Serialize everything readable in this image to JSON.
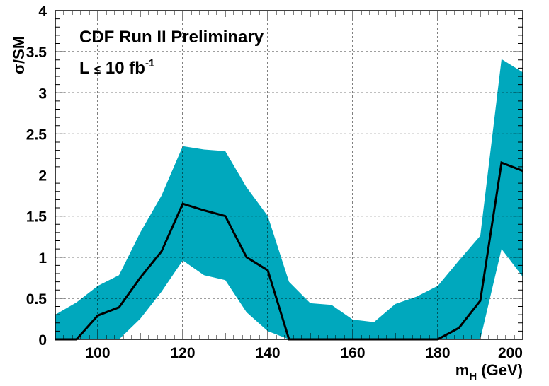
{
  "chart_data": {
    "type": "area",
    "xlabel": {
      "main": "m",
      "sub": "H",
      "unit": " (GeV)"
    },
    "ylabel": "σ/SM",
    "xlim": [
      90,
      200
    ],
    "ylim": [
      0,
      4
    ],
    "x_ticks": [
      100,
      120,
      140,
      160,
      180,
      200
    ],
    "x_tick_labels": [
      "100",
      "120",
      "140",
      "160",
      "180",
      "200"
    ],
    "y_ticks": [
      0,
      0.5,
      1,
      1.5,
      2,
      2.5,
      3,
      3.5,
      4
    ],
    "y_tick_labels": [
      "0",
      "0.5",
      "1",
      "1.5",
      "2",
      "2.5",
      "3",
      "3.5",
      "4"
    ],
    "grid": true,
    "annotations": {
      "line1": "CDF Run II Preliminary",
      "line2_prefix": "L ",
      "line2_le": "≤",
      "line2_value": " 10 fb",
      "line2_sup": "-1"
    },
    "band": {
      "color": "#00a8bd",
      "x": [
        90,
        95,
        100,
        105,
        110,
        115,
        120,
        125,
        130,
        135,
        140,
        145,
        150,
        155,
        160,
        165,
        170,
        175,
        180,
        185,
        190,
        195,
        200
      ],
      "upper": [
        0.3,
        0.45,
        0.65,
        0.78,
        1.3,
        1.75,
        2.35,
        2.31,
        2.29,
        1.85,
        1.5,
        0.7,
        0.44,
        0.42,
        0.24,
        0.21,
        0.43,
        0.52,
        0.65,
        0.96,
        1.26,
        3.41,
        3.25
      ],
      "lower": [
        0,
        0,
        0,
        0,
        0.25,
        0.58,
        0.96,
        0.78,
        0.72,
        0.33,
        0.1,
        0,
        0,
        0,
        0,
        0,
        0,
        0,
        0,
        0,
        0,
        1.1,
        0.76
      ]
    },
    "line": {
      "color": "#000000",
      "x": [
        90,
        95,
        100,
        105,
        110,
        115,
        120,
        125,
        130,
        135,
        140,
        145,
        150,
        155,
        160,
        165,
        170,
        175,
        180,
        185,
        190,
        195,
        200
      ],
      "y": [
        0,
        0,
        0.29,
        0.39,
        0.75,
        1.07,
        1.65,
        1.57,
        1.5,
        1.0,
        0.84,
        0,
        0,
        0,
        0,
        0,
        0,
        0,
        0,
        0.14,
        0.47,
        2.15,
        2.05
      ]
    }
  }
}
